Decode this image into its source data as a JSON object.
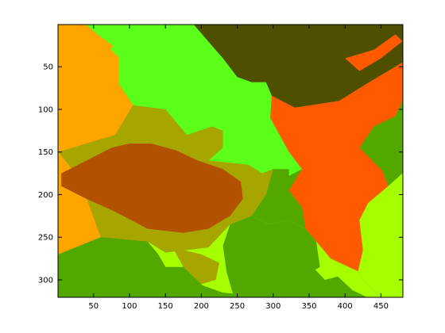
{
  "chart_data": {
    "type": "heatmap",
    "title": "",
    "xlabel": "",
    "ylabel": "",
    "xlim": [
      0.5,
      480.5
    ],
    "ylim": [
      320.5,
      0.5
    ],
    "y_reversed": true,
    "grid": false,
    "x_ticks": [
      50,
      100,
      150,
      200,
      250,
      300,
      350,
      400,
      450
    ],
    "y_ticks": [
      50,
      100,
      150,
      200,
      250,
      300
    ],
    "segment_colors": {
      "orange": "#ffa500",
      "bright_green": "#5cff1a",
      "dark_olive": "#4f4f00",
      "red_orange": "#ff5a00",
      "olive_gold": "#a7a600",
      "rust": "#b25200",
      "leaf_green": "#53a800",
      "lime": "#a6ff00"
    },
    "regions": [
      {
        "color": "orange",
        "points": [
          [
            1,
            1
          ],
          [
            40,
            1
          ],
          [
            60,
            15
          ],
          [
            85,
            30
          ],
          [
            85,
            70
          ],
          [
            105,
            95
          ],
          [
            80,
            130
          ],
          [
            1,
            150
          ]
        ]
      },
      {
        "color": "orange",
        "points": [
          [
            1,
            150
          ],
          [
            30,
            180
          ],
          [
            60,
            250
          ],
          [
            1,
            270
          ]
        ]
      },
      {
        "color": "olive_gold",
        "points": [
          [
            1,
            150
          ],
          [
            80,
            130
          ],
          [
            105,
            95
          ],
          [
            150,
            100
          ],
          [
            180,
            130
          ],
          [
            215,
            120
          ],
          [
            230,
            125
          ],
          [
            230,
            145
          ],
          [
            210,
            160
          ],
          [
            265,
            165
          ],
          [
            285,
            175
          ],
          [
            300,
            170
          ],
          [
            290,
            200
          ],
          [
            270,
            225
          ],
          [
            240,
            235
          ],
          [
            210,
            262
          ],
          [
            150,
            268
          ],
          [
            125,
            255
          ],
          [
            60,
            250
          ],
          [
            30,
            180
          ]
        ]
      },
      {
        "color": "bright_green",
        "points": [
          [
            40,
            1
          ],
          [
            190,
            1
          ],
          [
            230,
            40
          ],
          [
            250,
            62
          ],
          [
            270,
            68
          ],
          [
            290,
            68
          ],
          [
            298,
            84
          ],
          [
            296,
            110
          ],
          [
            322,
            150
          ],
          [
            340,
            170
          ],
          [
            300,
            170
          ],
          [
            285,
            175
          ],
          [
            265,
            165
          ],
          [
            210,
            160
          ],
          [
            230,
            145
          ],
          [
            230,
            125
          ],
          [
            215,
            120
          ],
          [
            180,
            130
          ],
          [
            150,
            100
          ],
          [
            105,
            95
          ],
          [
            85,
            70
          ],
          [
            85,
            30
          ],
          [
            60,
            15
          ]
        ]
      },
      {
        "color": "dark_olive",
        "points": [
          [
            190,
            1
          ],
          [
            480,
            1
          ],
          [
            480,
            45
          ],
          [
            430,
            70
          ],
          [
            392,
            90
          ],
          [
            330,
            98
          ],
          [
            298,
            84
          ],
          [
            290,
            68
          ],
          [
            270,
            68
          ],
          [
            250,
            62
          ],
          [
            230,
            40
          ]
        ]
      },
      {
        "color": "red_orange",
        "points": [
          [
            298,
            84
          ],
          [
            330,
            98
          ],
          [
            392,
            90
          ],
          [
            430,
            70
          ],
          [
            480,
            45
          ],
          [
            480,
            90
          ],
          [
            470,
            108
          ],
          [
            440,
            120
          ],
          [
            420,
            145
          ],
          [
            438,
            160
          ],
          [
            452,
            172
          ],
          [
            460,
            190
          ],
          [
            432,
            210
          ],
          [
            420,
            230
          ],
          [
            425,
            265
          ],
          [
            418,
            290
          ],
          [
            380,
            275
          ],
          [
            360,
            255
          ],
          [
            345,
            240
          ],
          [
            340,
            215
          ],
          [
            322,
            195
          ],
          [
            340,
            170
          ],
          [
            322,
            150
          ],
          [
            296,
            110
          ]
        ]
      },
      {
        "color": "rust",
        "points": [
          [
            5,
            175
          ],
          [
            40,
            160
          ],
          [
            75,
            145
          ],
          [
            100,
            140
          ],
          [
            130,
            140
          ],
          [
            165,
            148
          ],
          [
            195,
            160
          ],
          [
            230,
            170
          ],
          [
            255,
            185
          ],
          [
            258,
            205
          ],
          [
            240,
            225
          ],
          [
            210,
            240
          ],
          [
            175,
            245
          ],
          [
            125,
            240
          ],
          [
            80,
            220
          ],
          [
            40,
            205
          ],
          [
            5,
            190
          ]
        ]
      },
      {
        "color": "lime",
        "points": [
          [
            460,
            190
          ],
          [
            480,
            175
          ],
          [
            480,
            320
          ],
          [
            450,
            320
          ],
          [
            425,
            300
          ],
          [
            418,
            290
          ],
          [
            425,
            265
          ],
          [
            420,
            230
          ],
          [
            432,
            210
          ]
        ]
      },
      {
        "color": "lime",
        "points": [
          [
            125,
            255
          ],
          [
            150,
            268
          ],
          [
            210,
            262
          ],
          [
            240,
            235
          ],
          [
            270,
            225
          ],
          [
            295,
            235
          ],
          [
            320,
            230
          ],
          [
            345,
            240
          ],
          [
            360,
            255
          ],
          [
            380,
            275
          ],
          [
            418,
            290
          ],
          [
            425,
            300
          ],
          [
            450,
            320
          ],
          [
            300,
            320
          ],
          [
            230,
            315
          ],
          [
            180,
            300
          ],
          [
            150,
            285
          ],
          [
            140,
            270
          ]
        ]
      },
      {
        "color": "olive_gold",
        "points": [
          [
            160,
            262
          ],
          [
            200,
            270
          ],
          [
            225,
            280
          ],
          [
            220,
            300
          ],
          [
            200,
            305
          ],
          [
            175,
            285
          ]
        ]
      },
      {
        "color": "leaf_green",
        "points": [
          [
            1,
            270
          ],
          [
            60,
            250
          ],
          [
            125,
            255
          ],
          [
            140,
            270
          ],
          [
            150,
            285
          ],
          [
            150,
            320
          ],
          [
            1,
            320
          ]
        ]
      },
      {
        "color": "leaf_green",
        "points": [
          [
            150,
            285
          ],
          [
            175,
            285
          ],
          [
            200,
            305
          ],
          [
            210,
            320
          ],
          [
            150,
            320
          ]
        ]
      },
      {
        "color": "leaf_green",
        "points": [
          [
            240,
            235
          ],
          [
            270,
            225
          ],
          [
            295,
            235
          ],
          [
            320,
            230
          ],
          [
            345,
            240
          ],
          [
            360,
            255
          ],
          [
            365,
            285
          ],
          [
            345,
            295
          ],
          [
            330,
            320
          ],
          [
            245,
            320
          ],
          [
            235,
            290
          ],
          [
            230,
            260
          ]
        ]
      },
      {
        "color": "leaf_green",
        "points": [
          [
            310,
            300
          ],
          [
            330,
            294
          ],
          [
            355,
            285
          ],
          [
            372,
            300
          ],
          [
            390,
            296
          ],
          [
            410,
            312
          ],
          [
            430,
            320
          ],
          [
            300,
            320
          ]
        ]
      },
      {
        "color": "bright_green",
        "points": [
          [
            322,
            150
          ],
          [
            330,
            160
          ],
          [
            340,
            170
          ],
          [
            322,
            178
          ]
        ]
      },
      {
        "color": "red_orange",
        "points": [
          [
            400,
            40
          ],
          [
            440,
            30
          ],
          [
            470,
            12
          ],
          [
            480,
            20
          ],
          [
            450,
            40
          ],
          [
            420,
            55
          ]
        ]
      },
      {
        "color": "bright_green",
        "points": [
          [
            80,
            20
          ],
          [
            90,
            30
          ],
          [
            84,
            38
          ],
          [
            74,
            30
          ]
        ]
      }
    ]
  }
}
